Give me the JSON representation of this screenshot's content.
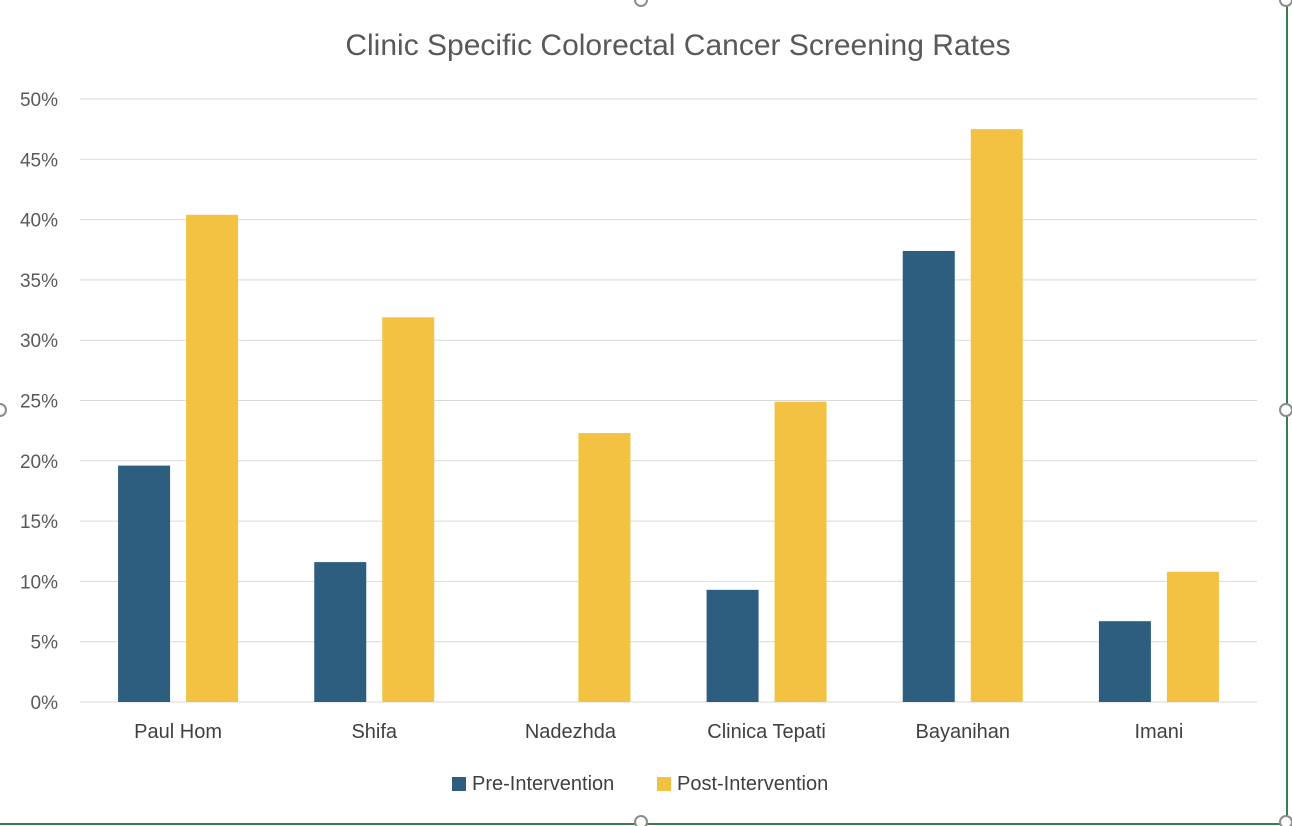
{
  "chart_data": {
    "type": "bar",
    "title": "Clinic Specific Colorectal Cancer Screening Rates",
    "xlabel": "",
    "ylabel": "",
    "categories": [
      "Paul Hom",
      "Shifa",
      "Nadezhda",
      "Clinica Tepati",
      "Bayanihan",
      "Imani"
    ],
    "series": [
      {
        "name": "Pre-Intervention",
        "color": "#2D5E80",
        "values": [
          19.6,
          11.6,
          0,
          9.3,
          37.4,
          6.7
        ]
      },
      {
        "name": "Post-Intervention",
        "color": "#F4C242",
        "values": [
          40.4,
          31.9,
          22.3,
          24.9,
          47.5,
          10.8
        ]
      }
    ],
    "ylim": [
      0,
      50
    ],
    "yticks": [
      "0%",
      "5%",
      "10%",
      "15%",
      "20%",
      "25%",
      "30%",
      "35%",
      "40%",
      "45%",
      "50%"
    ],
    "grid": true,
    "legend_position": "bottom"
  },
  "frame": {
    "border_color": "#3A7D4F",
    "gridline_color": "#D9D9D9",
    "handle_color": "#8C8C8C"
  }
}
